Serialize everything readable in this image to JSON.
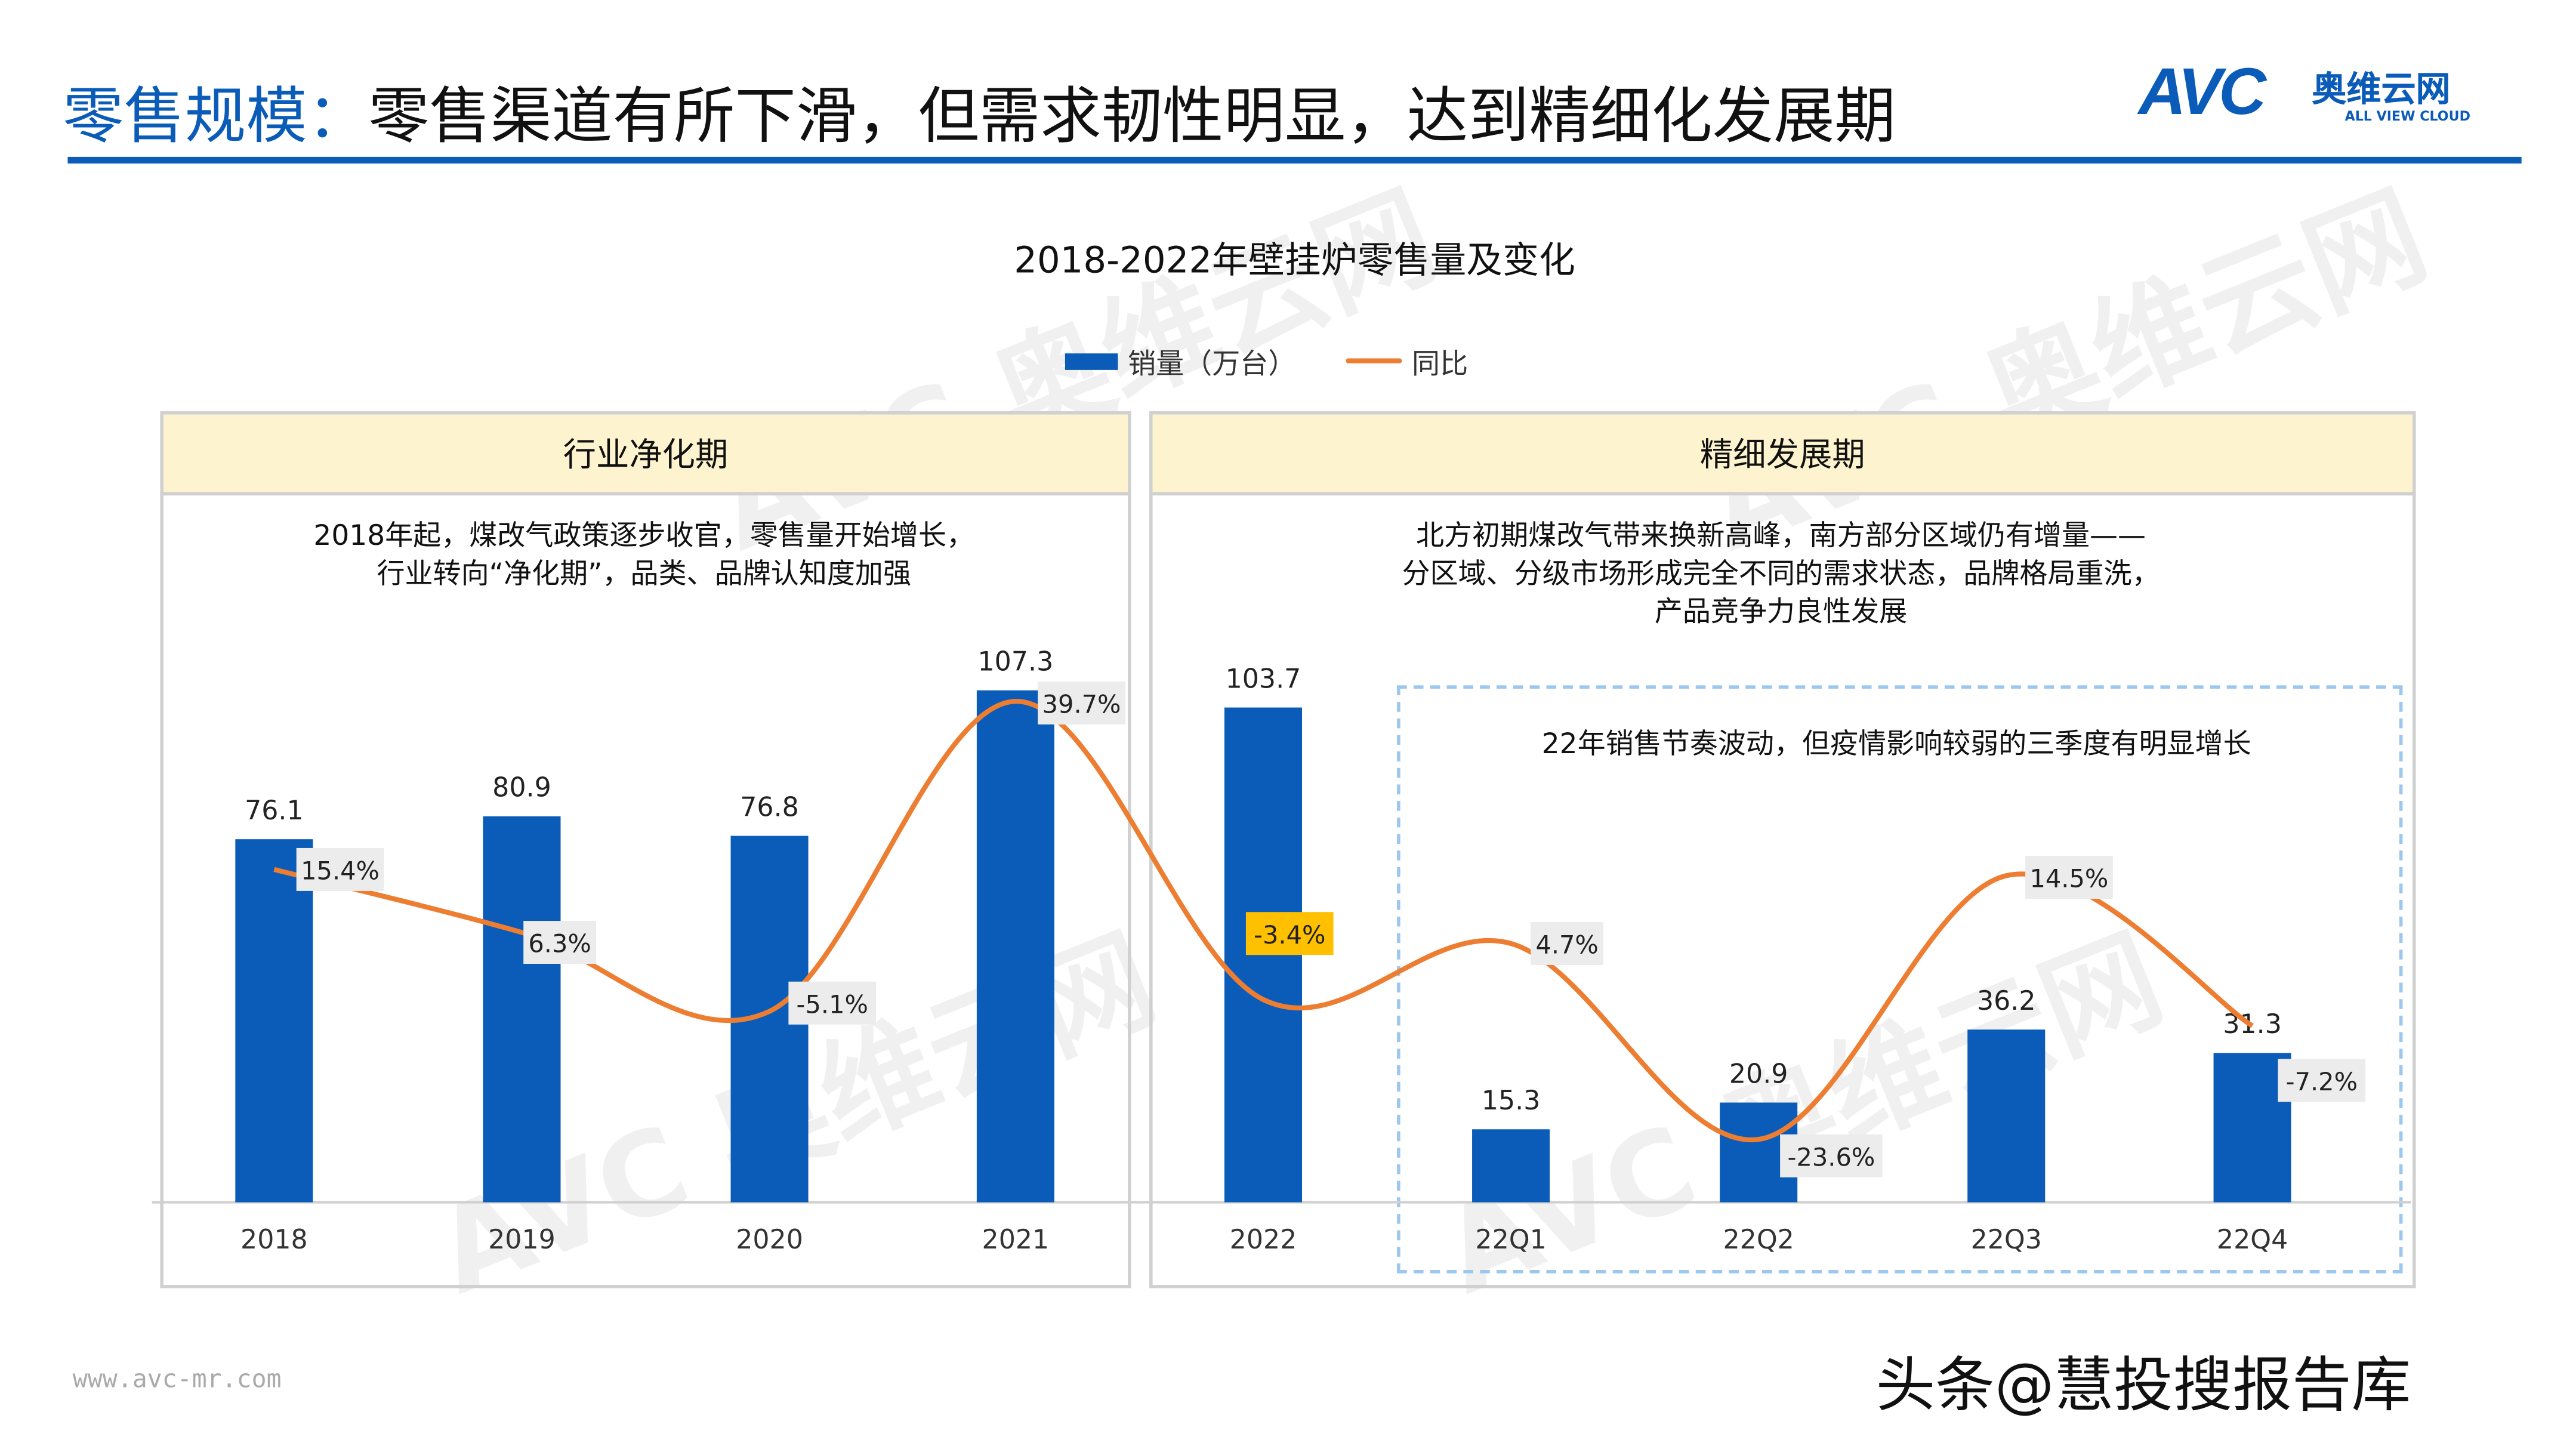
{
  "header": {
    "title_prefix": "零售规模：",
    "title_main": "零售渠道有所下滑，但需求韧性明显，达到精细化发展期"
  },
  "logo": {
    "mark": "AVC",
    "cn": "奥维云网",
    "en": "ALL VIEW CLOUD"
  },
  "panels": [
    {
      "title": "行业净化期",
      "desc": [
        "2018年起，煤改气政策逐步收官，零售量开始增长，",
        "行业转向“净化期”，品类、品牌认知度加强"
      ]
    },
    {
      "title": "精细发展期",
      "desc": [
        "北方初期煤改气带来换新高峰，南方部分区域仍有增量——",
        "分区域、分级市场形成完全不同的需求状态，品牌格局重洗，",
        "产品竞争力良性发展"
      ]
    }
  ],
  "highlight_note": "22年销售节奏波动，但疫情影响较弱的三季度有明显增长",
  "footer": {
    "site": "www.avc-mr.com",
    "watermark": "头条@慧投搜报告库"
  },
  "colors": {
    "bar": "#0a5cb8",
    "line": "#ed7d31",
    "highlight_label": "#ffc000",
    "label_bg": "#ececec",
    "panel_head": "#fdf3cf"
  },
  "chart_data": {
    "type": "bar+line",
    "title": "2018-2022年壁挂炉零售量及变化",
    "categories": [
      "2018",
      "2019",
      "2020",
      "2021",
      "2022",
      "22Q1",
      "22Q2",
      "22Q3",
      "22Q4"
    ],
    "series": [
      {
        "name": "销量（万台）",
        "type": "bar",
        "values": [
          76.1,
          80.9,
          76.8,
          107.3,
          103.7,
          15.3,
          20.9,
          36.2,
          31.3
        ],
        "labels": [
          "76.1",
          "80.9",
          "76.8",
          "107.3",
          "103.7",
          "15.3",
          "20.9",
          "36.2",
          "31.3"
        ]
      },
      {
        "name": "同比",
        "type": "line",
        "values": [
          15.4,
          6.3,
          -5.1,
          39.7,
          -3.4,
          4.7,
          -23.6,
          14.5,
          -7.2
        ],
        "labels": [
          "15.4%",
          "6.3%",
          "-5.1%",
          "39.7%",
          "-3.4%",
          "4.7%",
          "-23.6%",
          "14.5%",
          "-7.2%"
        ]
      }
    ],
    "legend": "top-center"
  }
}
